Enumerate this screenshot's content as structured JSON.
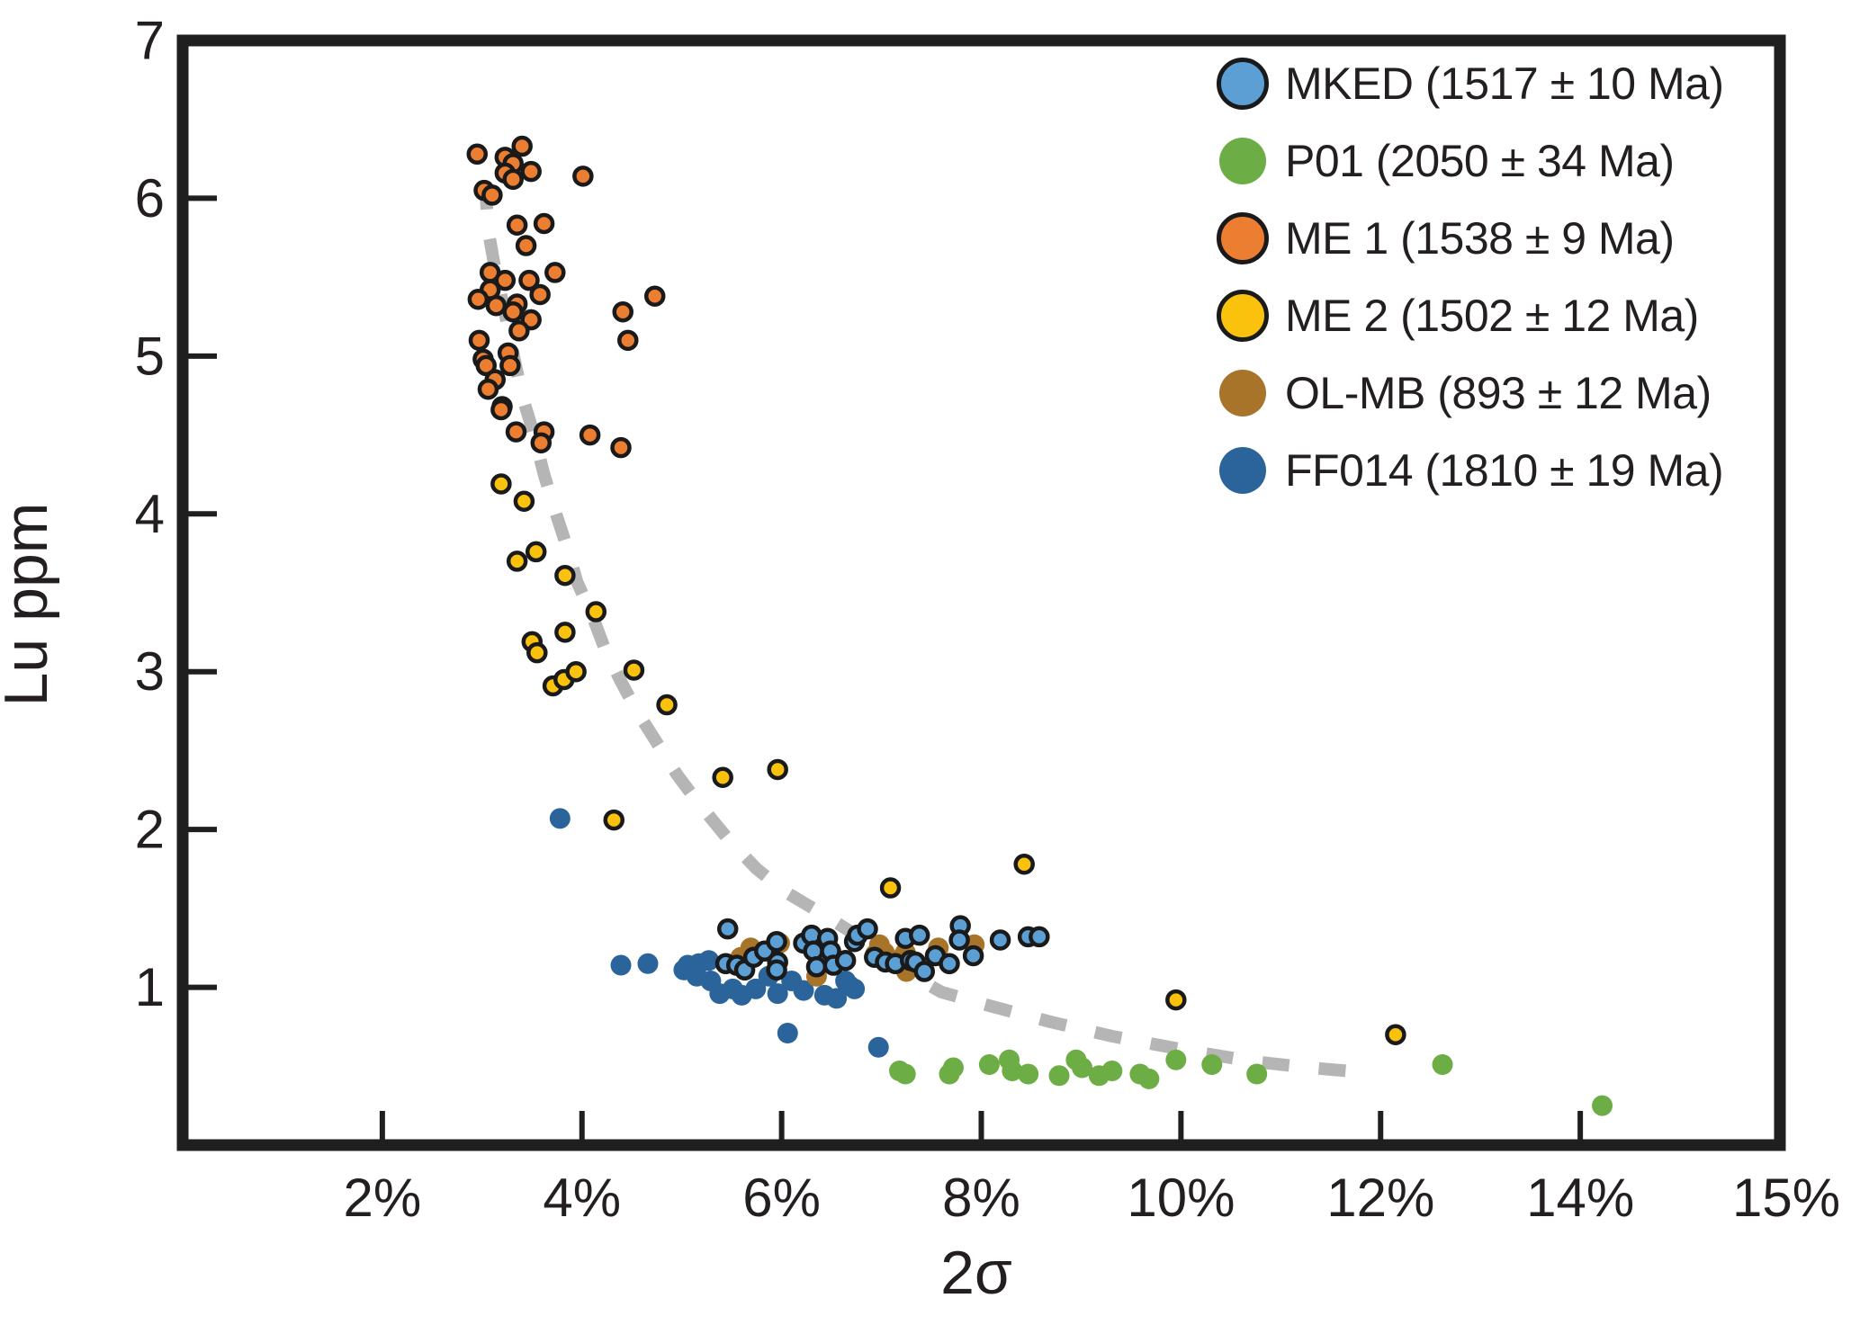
{
  "axes": {
    "x": {
      "title": "2σ",
      "corner_label": "15%"
    },
    "y": {
      "title": "Lu ppm"
    }
  },
  "legend": {
    "position": "top-right-inside",
    "items": [
      {
        "key": "mked",
        "label": "MKED (1517 ± 10 Ma)",
        "color": "#5B9FD4",
        "outlined": true
      },
      {
        "key": "p01",
        "label": "P01 (2050 ± 34 Ma)",
        "color": "#6CAE45",
        "outlined": false
      },
      {
        "key": "me1",
        "label": "ME 1 (1538 ± 9 Ma)",
        "color": "#EC7E31",
        "outlined": true
      },
      {
        "key": "me2",
        "label": "ME 2 (1502 ± 12 Ma)",
        "color": "#FAC20C",
        "outlined": true
      },
      {
        "key": "olmb",
        "label": "OL-MB (893 ± 12 Ma)",
        "color": "#A77429",
        "outlined": false
      },
      {
        "key": "ff014",
        "label": "FF014 (1810 ± 19 Ma)",
        "color": "#2B649B",
        "outlined": false
      }
    ]
  },
  "chart_data": {
    "type": "scatter",
    "title": "",
    "xlabel": "2σ",
    "ylabel": "Lu ppm",
    "xlim": [
      0,
      16
    ],
    "ylim": [
      0,
      7
    ],
    "grid": false,
    "legend_position": "upper right",
    "x_ticks": [
      {
        "value": 2,
        "label": "2%"
      },
      {
        "value": 4,
        "label": "4%"
      },
      {
        "value": 6,
        "label": "6%"
      },
      {
        "value": 8,
        "label": "8%"
      },
      {
        "value": 10,
        "label": "10%"
      },
      {
        "value": 12,
        "label": "12%"
      },
      {
        "value": 14,
        "label": "14%"
      }
    ],
    "x_axis_end_label": {
      "value": 16,
      "label": "15%"
    },
    "y_ticks": [
      {
        "value": 1,
        "label": "1",
        "tick": true
      },
      {
        "value": 2,
        "label": "2",
        "tick": true
      },
      {
        "value": 3,
        "label": "3",
        "tick": true
      },
      {
        "value": 4,
        "label": "4",
        "tick": true
      },
      {
        "value": 5,
        "label": "5",
        "tick": true
      },
      {
        "value": 6,
        "label": "6",
        "tick": true
      },
      {
        "value": 7,
        "label": "7",
        "tick": false
      }
    ],
    "frame_color": "#1f1f1f",
    "draw_order": [
      1,
      5,
      4,
      3,
      2,
      0
    ],
    "series": [
      {
        "name": "MKED (1517 ± 10 Ma)",
        "key": "mked",
        "color": "#5B9FD4",
        "outline": "#1a1a1a",
        "points": [
          [
            5.46,
            1.37
          ],
          [
            5.44,
            1.15
          ],
          [
            5.55,
            1.14
          ],
          [
            5.63,
            1.11
          ],
          [
            5.72,
            1.19
          ],
          [
            5.83,
            1.23
          ],
          [
            5.95,
            1.29
          ],
          [
            5.96,
            1.16
          ],
          [
            5.95,
            1.11
          ],
          [
            6.22,
            1.28
          ],
          [
            6.3,
            1.33
          ],
          [
            6.32,
            1.23
          ],
          [
            6.46,
            1.31
          ],
          [
            6.49,
            1.23
          ],
          [
            6.35,
            1.13
          ],
          [
            6.52,
            1.14
          ],
          [
            6.64,
            1.17
          ],
          [
            6.73,
            1.29
          ],
          [
            6.76,
            1.33
          ],
          [
            6.86,
            1.37
          ],
          [
            6.93,
            1.19
          ],
          [
            7.04,
            1.16
          ],
          [
            7.14,
            1.15
          ],
          [
            7.24,
            1.31
          ],
          [
            7.29,
            1.17
          ],
          [
            7.34,
            1.16
          ],
          [
            7.38,
            1.33
          ],
          [
            7.43,
            1.1
          ],
          [
            7.54,
            1.2
          ],
          [
            7.68,
            1.15
          ],
          [
            7.79,
            1.39
          ],
          [
            7.78,
            1.3
          ],
          [
            7.92,
            1.2
          ],
          [
            8.19,
            1.3
          ],
          [
            8.47,
            1.32
          ],
          [
            8.58,
            1.32
          ]
        ]
      },
      {
        "name": "P01 (2050 ± 34 Ma)",
        "key": "p01",
        "color": "#6CAE45",
        "outline": null,
        "points": [
          [
            7.18,
            0.47
          ],
          [
            7.24,
            0.45
          ],
          [
            7.68,
            0.45
          ],
          [
            7.72,
            0.49
          ],
          [
            8.08,
            0.51
          ],
          [
            8.28,
            0.54
          ],
          [
            8.31,
            0.47
          ],
          [
            8.47,
            0.45
          ],
          [
            8.78,
            0.44
          ],
          [
            8.95,
            0.54
          ],
          [
            9.01,
            0.49
          ],
          [
            9.18,
            0.44
          ],
          [
            9.31,
            0.47
          ],
          [
            9.59,
            0.45
          ],
          [
            9.68,
            0.42
          ],
          [
            9.95,
            0.54
          ],
          [
            10.31,
            0.51
          ],
          [
            10.76,
            0.45
          ],
          [
            12.62,
            0.51
          ],
          [
            14.22,
            0.25
          ]
        ]
      },
      {
        "name": "ME 1 (1538 ± 9 Ma)",
        "key": "me1",
        "color": "#EC7E31",
        "outline": "#1a1a1a",
        "points": [
          [
            2.95,
            6.28
          ],
          [
            3.4,
            6.33
          ],
          [
            3.23,
            6.26
          ],
          [
            3.31,
            6.22
          ],
          [
            3.49,
            6.17
          ],
          [
            3.23,
            6.16
          ],
          [
            3.31,
            6.12
          ],
          [
            3.02,
            6.05
          ],
          [
            3.1,
            6.02
          ],
          [
            4.01,
            6.14
          ],
          [
            3.35,
            5.83
          ],
          [
            3.62,
            5.84
          ],
          [
            3.44,
            5.7
          ],
          [
            3.73,
            5.53
          ],
          [
            3.08,
            5.53
          ],
          [
            3.23,
            5.48
          ],
          [
            3.47,
            5.48
          ],
          [
            3.08,
            5.42
          ],
          [
            2.96,
            5.36
          ],
          [
            3.14,
            5.32
          ],
          [
            3.35,
            5.33
          ],
          [
            3.31,
            5.28
          ],
          [
            3.58,
            5.39
          ],
          [
            3.49,
            5.23
          ],
          [
            3.37,
            5.16
          ],
          [
            4.41,
            5.28
          ],
          [
            4.73,
            5.38
          ],
          [
            4.46,
            5.1
          ],
          [
            2.97,
            5.1
          ],
          [
            3.01,
            4.98
          ],
          [
            3.04,
            4.94
          ],
          [
            3.26,
            5.02
          ],
          [
            3.28,
            4.94
          ],
          [
            3.13,
            4.85
          ],
          [
            3.06,
            4.79
          ],
          [
            3.2,
            4.68
          ],
          [
            3.19,
            4.66
          ],
          [
            3.34,
            4.52
          ],
          [
            3.62,
            4.52
          ],
          [
            3.59,
            4.45
          ],
          [
            4.08,
            4.5
          ],
          [
            4.39,
            4.42
          ]
        ]
      },
      {
        "name": "ME 2 (1502 ± 12 Ma)",
        "key": "me2",
        "color": "#FAC20C",
        "outline": "#1a1a1a",
        "points": [
          [
            3.19,
            4.19
          ],
          [
            3.42,
            4.08
          ],
          [
            3.35,
            3.7
          ],
          [
            3.54,
            3.76
          ],
          [
            3.83,
            3.61
          ],
          [
            4.14,
            3.38
          ],
          [
            3.83,
            3.25
          ],
          [
            3.5,
            3.19
          ],
          [
            3.55,
            3.12
          ],
          [
            3.71,
            2.91
          ],
          [
            3.82,
            2.95
          ],
          [
            3.94,
            3.0
          ],
          [
            4.52,
            3.01
          ],
          [
            4.85,
            2.79
          ],
          [
            5.41,
            2.33
          ],
          [
            5.96,
            2.38
          ],
          [
            4.32,
            2.06
          ],
          [
            7.09,
            1.63
          ],
          [
            8.43,
            1.78
          ],
          [
            9.95,
            0.92
          ],
          [
            12.15,
            0.7
          ]
        ]
      },
      {
        "name": "OL-MB (893 ± 12 Ma)",
        "key": "olmb",
        "color": "#A77429",
        "outline": null,
        "points": [
          [
            5.59,
            1.19
          ],
          [
            5.69,
            1.25
          ],
          [
            5.98,
            1.28
          ],
          [
            6.35,
            1.07
          ],
          [
            6.94,
            1.21
          ],
          [
            6.98,
            1.27
          ],
          [
            7.03,
            1.22
          ],
          [
            7.21,
            1.19
          ],
          [
            7.24,
            1.22
          ],
          [
            7.25,
            1.1
          ],
          [
            7.57,
            1.25
          ],
          [
            7.93,
            1.27
          ]
        ]
      },
      {
        "name": "FF014 (1810 ± 19 Ma)",
        "key": "ff014",
        "color": "#2B649B",
        "outline": null,
        "points": [
          [
            3.78,
            2.07
          ],
          [
            4.39,
            1.14
          ],
          [
            4.66,
            1.15
          ],
          [
            5.02,
            1.11
          ],
          [
            5.06,
            1.14
          ],
          [
            5.15,
            1.07
          ],
          [
            5.17,
            1.15
          ],
          [
            5.27,
            1.17
          ],
          [
            5.29,
            1.04
          ],
          [
            5.38,
            0.96
          ],
          [
            5.51,
            0.99
          ],
          [
            5.6,
            0.95
          ],
          [
            5.74,
            0.99
          ],
          [
            5.87,
            1.07
          ],
          [
            5.96,
            0.96
          ],
          [
            6.1,
            1.04
          ],
          [
            6.22,
            0.98
          ],
          [
            6.43,
            0.95
          ],
          [
            6.55,
            0.93
          ],
          [
            6.64,
            1.04
          ],
          [
            6.68,
            1.01
          ],
          [
            6.73,
            0.99
          ],
          [
            6.06,
            0.71
          ],
          [
            6.97,
            0.62
          ]
        ]
      }
    ],
    "trend_line": {
      "style": "dashed",
      "color": "#b5b5b5",
      "points": [
        [
          3.03,
          6.1
        ],
        [
          3.06,
          5.8
        ],
        [
          3.13,
          5.55
        ],
        [
          3.22,
          5.3
        ],
        [
          3.3,
          5.05
        ],
        [
          3.4,
          4.75
        ],
        [
          3.52,
          4.5
        ],
        [
          3.62,
          4.25
        ],
        [
          3.74,
          4.0
        ],
        [
          3.85,
          3.79
        ],
        [
          3.95,
          3.57
        ],
        [
          4.1,
          3.36
        ],
        [
          4.22,
          3.16
        ],
        [
          4.38,
          2.95
        ],
        [
          4.55,
          2.75
        ],
        [
          4.75,
          2.55
        ],
        [
          4.95,
          2.35
        ],
        [
          5.15,
          2.18
        ],
        [
          5.45,
          1.95
        ],
        [
          5.75,
          1.75
        ],
        [
          6.05,
          1.6
        ],
        [
          6.37,
          1.48
        ],
        [
          6.75,
          1.33
        ],
        [
          7.15,
          1.13
        ],
        [
          7.6,
          0.97
        ],
        [
          8.1,
          0.88
        ],
        [
          8.7,
          0.78
        ],
        [
          9.31,
          0.69
        ],
        [
          10.06,
          0.6
        ],
        [
          10.72,
          0.53
        ],
        [
          11.3,
          0.49
        ],
        [
          11.85,
          0.46
        ]
      ]
    }
  }
}
